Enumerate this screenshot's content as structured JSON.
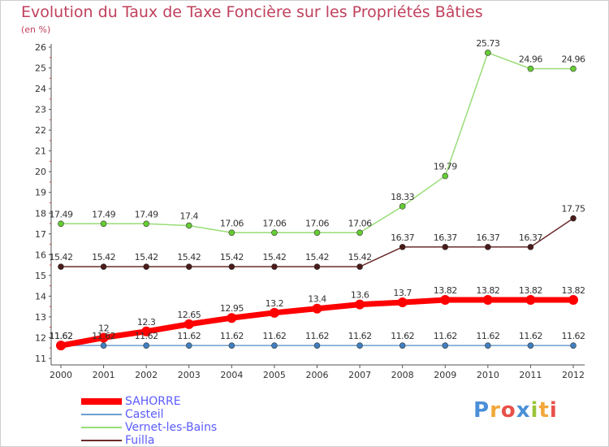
{
  "title": "Evolution du Taux de Taxe Foncière sur les Propriétés Bâties",
  "unit_label": "(en %)",
  "logo": {
    "text": "Proxiti",
    "colors": [
      "#4a8fd8",
      "#f2a83a",
      "#e8504a",
      "#4a8fd8",
      "#9ac43a",
      "#f2a83a",
      "#e8504a"
    ]
  },
  "chart_data": {
    "type": "line",
    "title": "Evolution du Taux de Taxe Foncière sur les Propriétés Bâties",
    "ylabel": "(en %)",
    "x": [
      2000,
      2001,
      2002,
      2003,
      2004,
      2005,
      2006,
      2007,
      2008,
      2009,
      2010,
      2011,
      2012
    ],
    "ylim": [
      11,
      26
    ],
    "yticks": [
      11,
      12,
      13,
      14,
      15,
      16,
      17,
      18,
      19,
      20,
      21,
      22,
      23,
      24,
      25,
      26
    ],
    "grid": false,
    "legend_position": "bottom-left",
    "series": [
      {
        "name": "Vernet-les-Bains",
        "color": "#99dd77",
        "marker": "#66cc33",
        "width": 1.5,
        "values": [
          17.49,
          17.49,
          17.49,
          17.4,
          17.06,
          17.06,
          17.06,
          17.06,
          18.33,
          19.79,
          25.73,
          24.96,
          24.96
        ],
        "labels": [
          "17.49",
          "17.49",
          "17.49",
          "17.4",
          "17.06",
          "17.06",
          "17.06",
          "17.06",
          "18.33",
          "19.79",
          "25.73",
          "24.96",
          "24.96"
        ]
      },
      {
        "name": "Fuilla",
        "color": "#6b2c2c",
        "marker": "#4a1a1a",
        "width": 1.5,
        "values": [
          15.42,
          15.42,
          15.42,
          15.42,
          15.42,
          15.42,
          15.42,
          15.42,
          16.37,
          16.37,
          16.37,
          16.37,
          17.75
        ],
        "labels": [
          "15.42",
          "15.42",
          "15.42",
          "15.42",
          "15.42",
          "15.42",
          "15.42",
          "15.42",
          "16.37",
          "16.37",
          "16.37",
          "16.37",
          "17.75"
        ]
      },
      {
        "name": "Casteil",
        "color": "#6f9fd0",
        "marker": "#3f7fc0",
        "width": 1.5,
        "values": [
          11.62,
          11.62,
          11.62,
          11.62,
          11.62,
          11.62,
          11.62,
          11.62,
          11.62,
          11.62,
          11.62,
          11.62,
          11.62
        ],
        "labels": [
          "11.62",
          "11.62",
          "11.62",
          "11.62",
          "11.62",
          "11.62",
          "11.62",
          "11.62",
          "11.62",
          "11.62",
          "11.62",
          "11.62",
          "11.62"
        ]
      },
      {
        "name": "SAHORRE",
        "color": "#ff0000",
        "marker": "#ff0000",
        "width": 7,
        "values": [
          11.62,
          12,
          12.3,
          12.65,
          12.95,
          13.2,
          13.4,
          13.6,
          13.7,
          13.82,
          13.82,
          13.82,
          13.82
        ],
        "labels": [
          "11.62",
          "12",
          "12.3",
          "12.65",
          "12.95",
          "13.2",
          "13.4",
          "13.6",
          "13.7",
          "13.82",
          "13.82",
          "13.82",
          "13.82"
        ]
      }
    ],
    "legend_order": [
      "SAHORRE",
      "Casteil",
      "Vernet-les-Bains",
      "Fuilla"
    ]
  }
}
